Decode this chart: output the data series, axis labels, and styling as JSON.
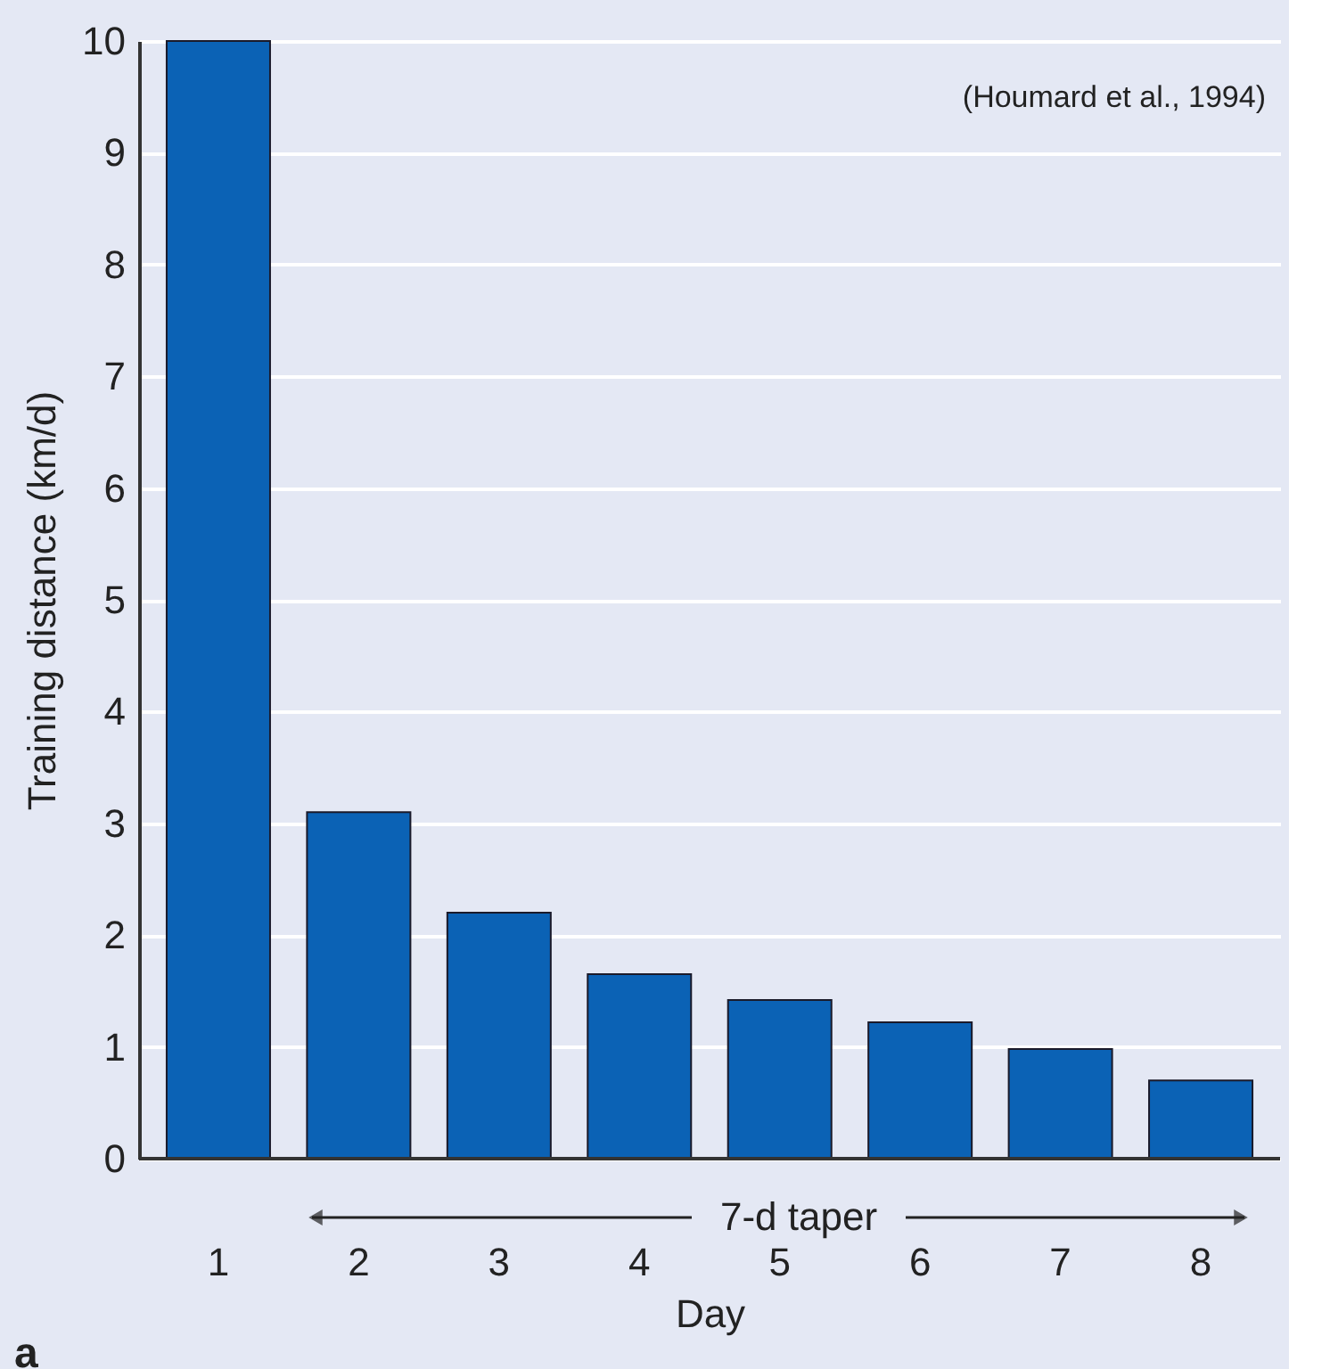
{
  "chart_data": {
    "type": "bar",
    "xlabel": "Day",
    "ylabel": "Training distance (km/d)",
    "categories": [
      "1",
      "2",
      "3",
      "4",
      "5",
      "6",
      "7",
      "8"
    ],
    "values": [
      10,
      3.1,
      2.2,
      1.65,
      1.42,
      1.22,
      0.98,
      0.7
    ],
    "color": "#0b62b5",
    "ylim": [
      0,
      10
    ],
    "yticks": [
      0,
      1,
      2,
      3,
      4,
      5,
      6,
      7,
      8,
      9,
      10
    ],
    "grid": "y",
    "annotations": [
      "(Houmard et al., 1994)",
      "7-d taper",
      "a"
    ]
  }
}
